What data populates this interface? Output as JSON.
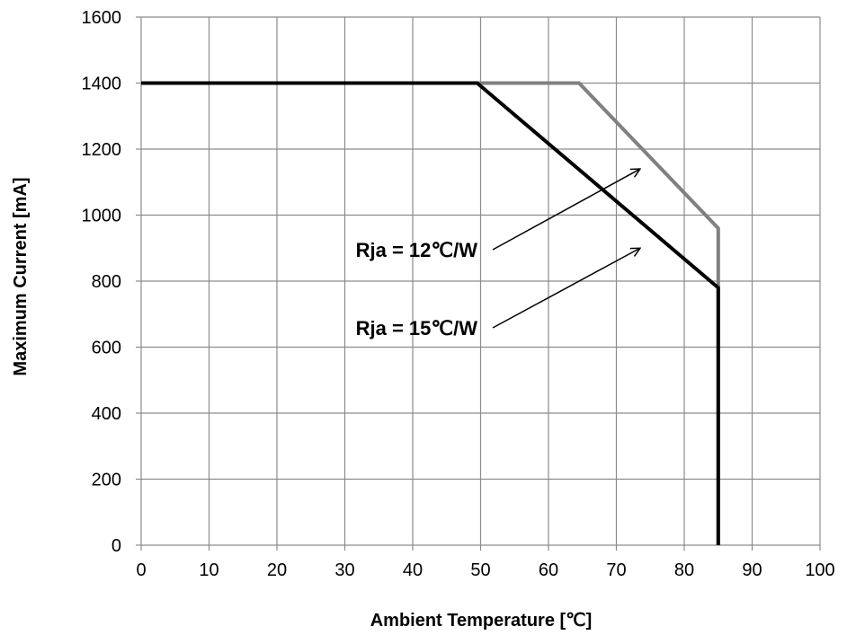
{
  "chart_data": {
    "type": "line",
    "title": "",
    "xlabel": "Ambient Temperature [℃]",
    "ylabel": "Maximum Current [mA]",
    "xlim": [
      0,
      100
    ],
    "ylim": [
      0,
      1600
    ],
    "xticks": [
      "0",
      "10",
      "20",
      "30",
      "40",
      "50",
      "60",
      "70",
      "80",
      "90",
      "100"
    ],
    "yticks": [
      "0",
      "200",
      "400",
      "600",
      "800",
      "1000",
      "1200",
      "1400",
      "1600"
    ],
    "grid": true,
    "legend": "none",
    "series": [
      {
        "color": "#808080",
        "points": [
          [
            0,
            1400
          ],
          [
            64.5,
            1400
          ],
          [
            85,
            960
          ],
          [
            85,
            0
          ]
        ]
      },
      {
        "color": "#000000",
        "points": [
          [
            0,
            1400
          ],
          [
            49.5,
            1400
          ],
          [
            85,
            780
          ],
          [
            85,
            0
          ]
        ]
      }
    ],
    "annotations": [
      {
        "label": "Rja = 12℃/W",
        "arrow_to": [
          73.5,
          1140
        ]
      },
      {
        "label": "Rja = 15℃/W",
        "arrow_to": [
          73.5,
          900
        ]
      }
    ]
  }
}
